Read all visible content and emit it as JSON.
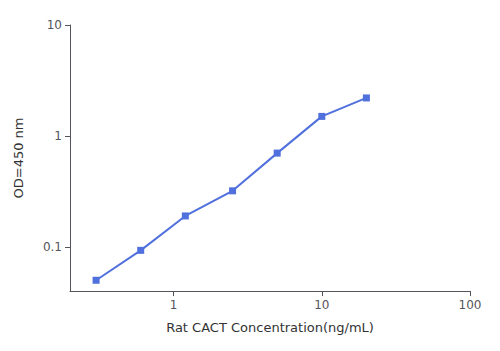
{
  "chart_data": {
    "type": "line",
    "x": [
      0.3,
      0.6,
      1.2,
      2.5,
      5,
      10,
      20
    ],
    "values": [
      0.05,
      0.093,
      0.19,
      0.32,
      0.7,
      1.5,
      2.2
    ],
    "xlabel": "Rat CACT Concentration(ng/mL)",
    "ylabel": "OD=450 nm",
    "xlim": [
      0.2,
      100
    ],
    "ylim": [
      0.04,
      10
    ],
    "xticks": [
      1,
      10,
      100
    ],
    "yticks": [
      0.1,
      1,
      10
    ],
    "log": true,
    "grid": false,
    "marker": "square"
  }
}
